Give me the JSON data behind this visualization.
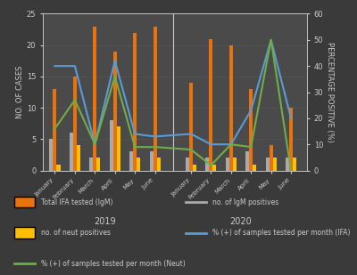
{
  "months": [
    "January",
    "February",
    "March",
    "April",
    "May",
    "June",
    "January",
    "February",
    "March",
    "April",
    "May",
    "June"
  ],
  "years": [
    "2019",
    "2020"
  ],
  "total_IFA": [
    13,
    15,
    23,
    19,
    22,
    23,
    14,
    21,
    20,
    13,
    4,
    10
  ],
  "igm_positives": [
    5,
    6,
    2,
    8,
    3,
    3,
    2,
    2,
    2,
    3,
    2,
    2
  ],
  "neut_positives": [
    1,
    4,
    2,
    7,
    2,
    2,
    1,
    1,
    2,
    1,
    2,
    2
  ],
  "pct_IFA": [
    40,
    40,
    10,
    42,
    14,
    13,
    14,
    10,
    10,
    23,
    50,
    20
  ],
  "pct_neut": [
    16,
    27,
    10,
    36,
    9,
    9,
    8,
    2,
    10,
    9,
    50,
    0
  ],
  "bar_color_orange": "#E8720C",
  "bar_color_yellow": "#FFC000",
  "bar_color_gray": "#AAAAAA",
  "line_color_blue": "#5B9BD5",
  "line_color_green": "#70AD47",
  "bg_color": "#3A3A3A",
  "plot_bg_color": "#4A4A4A",
  "text_color": "#CCCCCC",
  "grid_color": "#666666",
  "ylim_left": [
    0,
    25
  ],
  "ylim_right": [
    0,
    60
  ],
  "ylabel_left": "NO. OF CASES",
  "ylabel_right": "PERCENTAGE POSITIVE (%)",
  "legend_labels": [
    "Total IFA tested (IgM)",
    "no. of IgM positives",
    "no. of neut positives",
    "% (+) of samples tested per month (IFA)",
    "% (+) of samples tested per month (Neut)"
  ]
}
